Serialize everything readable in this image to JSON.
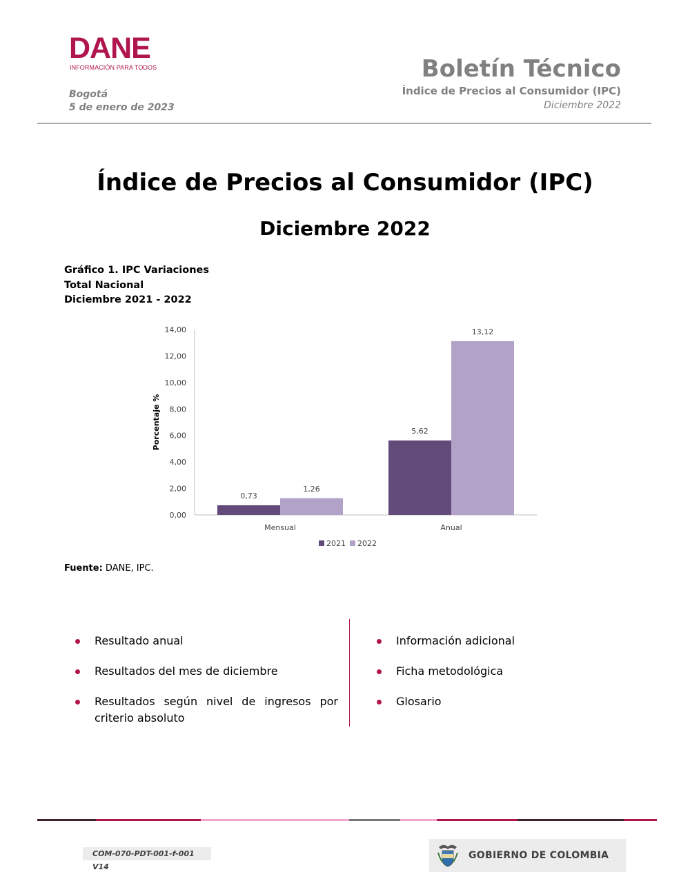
{
  "header": {
    "logo_word": "DANE",
    "logo_tagline": "INFORMACIÓN PARA TODOS",
    "city": "Bogotá",
    "date": "5 de enero de 2023",
    "bulletin_title": "Boletín Técnico",
    "bulletin_subtitle": "Índice de Precios al Consumidor (IPC)",
    "bulletin_period": "Diciembre 2022"
  },
  "main": {
    "title": "Índice de Precios al Consumidor (IPC)",
    "subtitle": "Diciembre 2022"
  },
  "graph_caption": {
    "line1": "Gráfico 1. IPC Variaciones",
    "line2": "Total Nacional",
    "line3": "Diciembre 2021 - 2022"
  },
  "chart_data": {
    "type": "bar",
    "categories": [
      "Mensual",
      "Anual"
    ],
    "series": [
      {
        "name": "2021",
        "values": [
          0.73,
          5.62
        ],
        "labels": [
          "0,73",
          "5,62"
        ],
        "color": "#624b7a"
      },
      {
        "name": "2022",
        "values": [
          1.26,
          13.12
        ],
        "labels": [
          "1,26",
          "13,12"
        ],
        "color": "#b3a2c7"
      }
    ],
    "ylabel": "Porcentaje %",
    "xlabel": "",
    "ylim": [
      0,
      14
    ],
    "yticks": [
      0,
      2,
      4,
      6,
      8,
      10,
      12,
      14
    ],
    "ytick_labels": [
      "0,00",
      "2,00",
      "4,00",
      "6,00",
      "8,00",
      "10,00",
      "12,00",
      "14,00"
    ],
    "grid": false,
    "legend_position": "bottom-center"
  },
  "source": {
    "label": "Fuente:",
    "text": " DANE, IPC."
  },
  "contents": {
    "left": [
      "Resultado anual",
      "Resultados del mes de diciembre",
      "Resultados según nivel de ingresos por criterio absoluto"
    ],
    "right": [
      "Información adicional",
      "Ficha metodológica",
      "Glosario"
    ]
  },
  "footer": {
    "doc_code": "COM-070-PDT-001-f-001 V14",
    "government": "GOBIERNO DE COLOMBIA"
  },
  "colors": {
    "brand": "#b0154d",
    "header_gray": "#808080",
    "series_2021": "#624b7a",
    "series_2022": "#b3a2c7"
  }
}
